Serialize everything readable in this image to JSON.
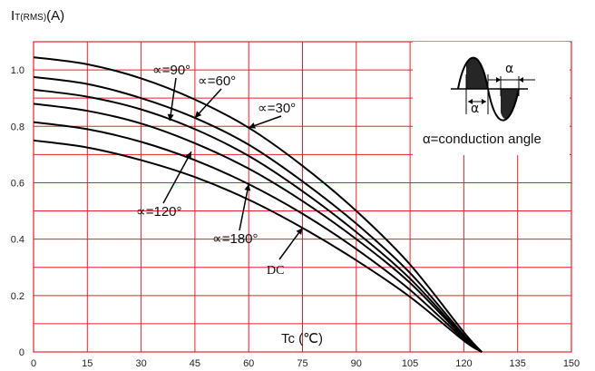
{
  "chart_data": {
    "type": "line",
    "ylabel_main": "I",
    "ylabel_sub": "T(RMS)",
    "ylabel_unit": "(A)",
    "xlabel": "Tc (℃)",
    "xlim": [
      0,
      150
    ],
    "ylim": [
      0,
      1.1
    ],
    "x_ticks": [
      0,
      15,
      30,
      45,
      60,
      75,
      90,
      105,
      120,
      135,
      150
    ],
    "y_ticks": [
      0,
      0.2,
      0.4,
      0.6,
      0.8,
      1.0
    ],
    "y_tick_labels": [
      "0",
      "0.2",
      "0.4",
      "0.6",
      "0.8",
      "1.0"
    ],
    "grid": true,
    "grid_color": "#e8202a",
    "line_color": "#000000",
    "series": [
      {
        "name": "∝=30°",
        "x": [
          0,
          15,
          30,
          45,
          60,
          75,
          90,
          105,
          120,
          125
        ],
        "y": [
          1.045,
          1.02,
          0.97,
          0.895,
          0.795,
          0.66,
          0.5,
          0.31,
          0.07,
          0.0
        ]
      },
      {
        "name": "∝=60°",
        "x": [
          0,
          15,
          30,
          45,
          60,
          75,
          90,
          105,
          120,
          125
        ],
        "y": [
          0.975,
          0.95,
          0.9,
          0.83,
          0.735,
          0.605,
          0.455,
          0.28,
          0.06,
          0.0
        ]
      },
      {
        "name": "∝=90°",
        "x": [
          0,
          15,
          30,
          45,
          60,
          75,
          90,
          105,
          120,
          125
        ],
        "y": [
          0.93,
          0.905,
          0.86,
          0.79,
          0.695,
          0.57,
          0.425,
          0.26,
          0.055,
          0.0
        ]
      },
      {
        "name": "∝=120°",
        "x": [
          0,
          15,
          30,
          45,
          60,
          75,
          90,
          105,
          120,
          125
        ],
        "y": [
          0.88,
          0.855,
          0.81,
          0.74,
          0.65,
          0.535,
          0.4,
          0.245,
          0.05,
          0.0
        ]
      },
      {
        "name": "∝=180°",
        "x": [
          0,
          15,
          30,
          45,
          60,
          75,
          90,
          105,
          120,
          125
        ],
        "y": [
          0.815,
          0.79,
          0.745,
          0.68,
          0.595,
          0.49,
          0.365,
          0.22,
          0.045,
          0.0
        ]
      },
      {
        "name": "DC",
        "x": [
          0,
          15,
          30,
          45,
          60,
          75,
          90,
          105,
          120,
          125
        ],
        "y": [
          0.75,
          0.725,
          0.68,
          0.62,
          0.54,
          0.44,
          0.325,
          0.195,
          0.04,
          0.0
        ]
      }
    ],
    "annotations": [
      {
        "text": "∝=90°",
        "series": "∝=90°",
        "point_x": 38,
        "point_y": 0.82
      },
      {
        "text": "∝=60°",
        "series": "∝=60°",
        "point_x": 45,
        "point_y": 0.83
      },
      {
        "text": "∝=30°",
        "series": "∝=30°",
        "point_x": 60,
        "point_y": 0.795
      },
      {
        "text": "∝=120°",
        "series": "∝=120°",
        "point_x": 44,
        "point_y": 0.71
      },
      {
        "text": "∝=180°",
        "series": "∝=180°",
        "point_x": 60,
        "point_y": 0.595
      },
      {
        "text": "DC",
        "series": "DC",
        "point_x": 75,
        "point_y": 0.44
      }
    ],
    "inset": {
      "alpha_symbol": "α",
      "caption": "α=conduction angle"
    }
  }
}
